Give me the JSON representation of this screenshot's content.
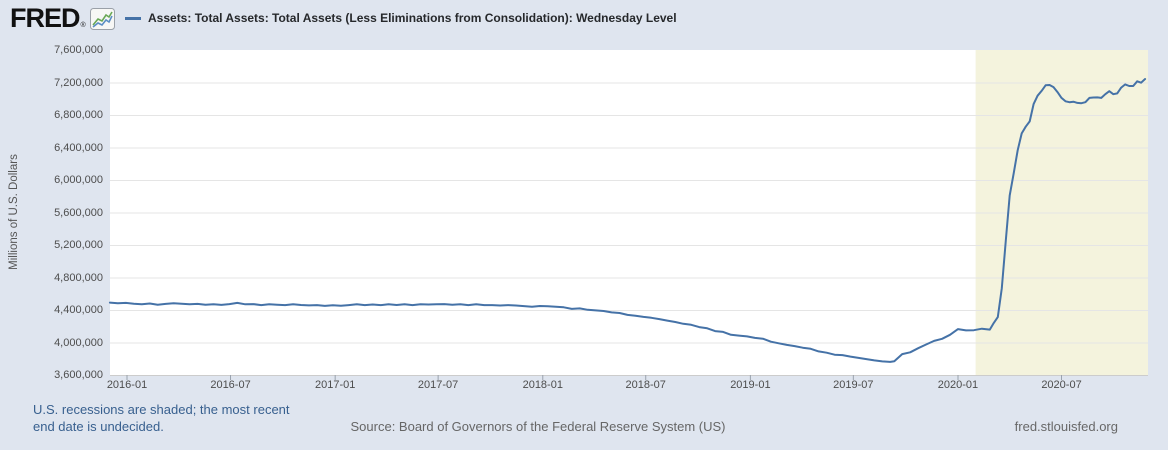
{
  "header": {
    "logo_text": "FRED",
    "registered_mark": "®",
    "legend_label": "Assets: Total Assets: Total Assets (Less Eliminations from Consolidation): Wednesday Level"
  },
  "y_axis": {
    "title": "Millions of U.S. Dollars",
    "ticks": [
      "7,600,000",
      "7,200,000",
      "6,800,000",
      "6,400,000",
      "6,000,000",
      "5,600,000",
      "5,200,000",
      "4,800,000",
      "4,400,000",
      "4,000,000",
      "3,600,000"
    ]
  },
  "x_axis": {
    "ticks": [
      "2016-01",
      "2016-07",
      "2017-01",
      "2017-07",
      "2018-01",
      "2018-07",
      "2019-01",
      "2019-07",
      "2020-01",
      "2020-07"
    ]
  },
  "footer": {
    "recession_note_line1": "U.S. recessions are shaded; the most recent",
    "recession_note_line2": "end date is undecided.",
    "source": "Source: Board of Governors of the Federal Reserve System (US)",
    "site": "fred.stlouisfed.org"
  },
  "colors": {
    "background": "#dfe5ef",
    "plot_background": "#ffffff",
    "line": "#4572a7",
    "recession_shading": "#f4f3dd",
    "gridline": "#e5e5e5",
    "axis_tick": "#9aa2ad",
    "plot_border_bottom": "#cccccc",
    "footer_link_blue": "#38608f",
    "footer_gray": "#666666",
    "logo_chart_green": "#69a855",
    "logo_chart_blue": "#5b8ec4"
  },
  "chart_data": {
    "type": "line",
    "title": "Assets: Total Assets: Total Assets (Less Eliminations from Consolidation): Wednesday Level",
    "ylabel": "Millions of U.S. Dollars",
    "ylim": [
      3600000,
      7600000
    ],
    "y_tick_step": 400000,
    "x_range": [
      "2015-12-02",
      "2020-12-01"
    ],
    "grid": "horizontal",
    "legend_position": "top",
    "recession_shading": {
      "start": "2020-02-01",
      "end": "2020-12-01"
    },
    "series": [
      {
        "name": "Assets: Total Assets: Total Assets (Less Eliminations from Consolidation): Wednesday Level",
        "units": "Millions of U.S. Dollars",
        "points": [
          [
            "2015-12-02",
            4491000
          ],
          [
            "2015-12-16",
            4482000
          ],
          [
            "2015-12-30",
            4487000
          ],
          [
            "2016-01-13",
            4478000
          ],
          [
            "2016-01-27",
            4470000
          ],
          [
            "2016-02-10",
            4480000
          ],
          [
            "2016-02-24",
            4465000
          ],
          [
            "2016-03-09",
            4475000
          ],
          [
            "2016-03-23",
            4483000
          ],
          [
            "2016-04-06",
            4478000
          ],
          [
            "2016-04-20",
            4470000
          ],
          [
            "2016-05-04",
            4475000
          ],
          [
            "2016-05-18",
            4464000
          ],
          [
            "2016-06-01",
            4470000
          ],
          [
            "2016-06-15",
            4463000
          ],
          [
            "2016-06-29",
            4473000
          ],
          [
            "2016-07-13",
            4488000
          ],
          [
            "2016-07-27",
            4470000
          ],
          [
            "2016-08-10",
            4472000
          ],
          [
            "2016-08-24",
            4460000
          ],
          [
            "2016-09-07",
            4470000
          ],
          [
            "2016-09-21",
            4465000
          ],
          [
            "2016-10-05",
            4460000
          ],
          [
            "2016-10-19",
            4470000
          ],
          [
            "2016-11-02",
            4462000
          ],
          [
            "2016-11-16",
            4456000
          ],
          [
            "2016-11-30",
            4460000
          ],
          [
            "2016-12-14",
            4450000
          ],
          [
            "2016-12-28",
            4458000
          ],
          [
            "2017-01-11",
            4452000
          ],
          [
            "2017-01-25",
            4460000
          ],
          [
            "2017-02-08",
            4470000
          ],
          [
            "2017-02-22",
            4460000
          ],
          [
            "2017-03-08",
            4468000
          ],
          [
            "2017-03-22",
            4460000
          ],
          [
            "2017-04-05",
            4470000
          ],
          [
            "2017-04-19",
            4462000
          ],
          [
            "2017-05-03",
            4470000
          ],
          [
            "2017-05-17",
            4460000
          ],
          [
            "2017-05-31",
            4470000
          ],
          [
            "2017-06-14",
            4468000
          ],
          [
            "2017-06-28",
            4470000
          ],
          [
            "2017-07-12",
            4472000
          ],
          [
            "2017-07-26",
            4465000
          ],
          [
            "2017-08-09",
            4470000
          ],
          [
            "2017-08-23",
            4460000
          ],
          [
            "2017-09-06",
            4470000
          ],
          [
            "2017-09-20",
            4460000
          ],
          [
            "2017-10-04",
            4460000
          ],
          [
            "2017-10-18",
            4455000
          ],
          [
            "2017-11-01",
            4460000
          ],
          [
            "2017-11-15",
            4455000
          ],
          [
            "2017-11-29",
            4448000
          ],
          [
            "2017-12-13",
            4440000
          ],
          [
            "2017-12-27",
            4449000
          ],
          [
            "2018-01-10",
            4445000
          ],
          [
            "2018-01-24",
            4439000
          ],
          [
            "2018-02-07",
            4433000
          ],
          [
            "2018-02-21",
            4414000
          ],
          [
            "2018-03-07",
            4420000
          ],
          [
            "2018-03-21",
            4402000
          ],
          [
            "2018-04-04",
            4395000
          ],
          [
            "2018-04-18",
            4388000
          ],
          [
            "2018-05-02",
            4370000
          ],
          [
            "2018-05-16",
            4363000
          ],
          [
            "2018-05-30",
            4340000
          ],
          [
            "2018-06-13",
            4330000
          ],
          [
            "2018-06-27",
            4315000
          ],
          [
            "2018-07-11",
            4304000
          ],
          [
            "2018-07-25",
            4288000
          ],
          [
            "2018-08-08",
            4270000
          ],
          [
            "2018-08-22",
            4252000
          ],
          [
            "2018-09-05",
            4230000
          ],
          [
            "2018-09-19",
            4218000
          ],
          [
            "2018-10-03",
            4190000
          ],
          [
            "2018-10-17",
            4175000
          ],
          [
            "2018-10-31",
            4140000
          ],
          [
            "2018-11-14",
            4130000
          ],
          [
            "2018-11-28",
            4095000
          ],
          [
            "2018-12-12",
            4085000
          ],
          [
            "2018-12-26",
            4075000
          ],
          [
            "2019-01-09",
            4056000
          ],
          [
            "2019-01-23",
            4047000
          ],
          [
            "2019-02-06",
            4010000
          ],
          [
            "2019-02-20",
            3990000
          ],
          [
            "2019-03-06",
            3970000
          ],
          [
            "2019-03-20",
            3956000
          ],
          [
            "2019-04-03",
            3936000
          ],
          [
            "2019-04-17",
            3922000
          ],
          [
            "2019-05-01",
            3890000
          ],
          [
            "2019-05-15",
            3875000
          ],
          [
            "2019-05-29",
            3850000
          ],
          [
            "2019-06-12",
            3845000
          ],
          [
            "2019-06-26",
            3826000
          ],
          [
            "2019-07-10",
            3810000
          ],
          [
            "2019-07-24",
            3796000
          ],
          [
            "2019-08-07",
            3780000
          ],
          [
            "2019-08-21",
            3768000
          ],
          [
            "2019-09-04",
            3761000
          ],
          [
            "2019-09-11",
            3769000
          ],
          [
            "2019-09-25",
            3857000
          ],
          [
            "2019-10-09",
            3880000
          ],
          [
            "2019-10-23",
            3930000
          ],
          [
            "2019-11-06",
            3975000
          ],
          [
            "2019-11-20",
            4020000
          ],
          [
            "2019-12-04",
            4046000
          ],
          [
            "2019-12-18",
            4095000
          ],
          [
            "2020-01-01",
            4165000
          ],
          [
            "2020-01-15",
            4149000
          ],
          [
            "2020-01-29",
            4151000
          ],
          [
            "2020-02-12",
            4170000
          ],
          [
            "2020-02-26",
            4159000
          ],
          [
            "2020-03-04",
            4241000
          ],
          [
            "2020-03-11",
            4312000
          ],
          [
            "2020-03-18",
            4668000
          ],
          [
            "2020-03-25",
            5254000
          ],
          [
            "2020-04-01",
            5811000
          ],
          [
            "2020-04-08",
            6083000
          ],
          [
            "2020-04-15",
            6367000
          ],
          [
            "2020-04-22",
            6573000
          ],
          [
            "2020-04-29",
            6656000
          ],
          [
            "2020-05-06",
            6721000
          ],
          [
            "2020-05-13",
            6934000
          ],
          [
            "2020-05-20",
            7037000
          ],
          [
            "2020-05-27",
            7097000
          ],
          [
            "2020-06-03",
            7165000
          ],
          [
            "2020-06-10",
            7169000
          ],
          [
            "2020-06-17",
            7143000
          ],
          [
            "2020-06-24",
            7082000
          ],
          [
            "2020-07-01",
            7010000
          ],
          [
            "2020-07-08",
            6969000
          ],
          [
            "2020-07-15",
            6958000
          ],
          [
            "2020-07-22",
            6964000
          ],
          [
            "2020-07-29",
            6949000
          ],
          [
            "2020-08-05",
            6945000
          ],
          [
            "2020-08-12",
            6957000
          ],
          [
            "2020-08-19",
            7010000
          ],
          [
            "2020-08-26",
            7015000
          ],
          [
            "2020-09-02",
            7017000
          ],
          [
            "2020-09-09",
            7011000
          ],
          [
            "2020-09-16",
            7056000
          ],
          [
            "2020-09-23",
            7093000
          ],
          [
            "2020-09-30",
            7056000
          ],
          [
            "2020-10-07",
            7066000
          ],
          [
            "2020-10-14",
            7137000
          ],
          [
            "2020-10-21",
            7177000
          ],
          [
            "2020-10-28",
            7157000
          ],
          [
            "2020-11-04",
            7157000
          ],
          [
            "2020-11-11",
            7215000
          ],
          [
            "2020-11-18",
            7197000
          ],
          [
            "2020-11-25",
            7243000
          ]
        ]
      }
    ]
  }
}
